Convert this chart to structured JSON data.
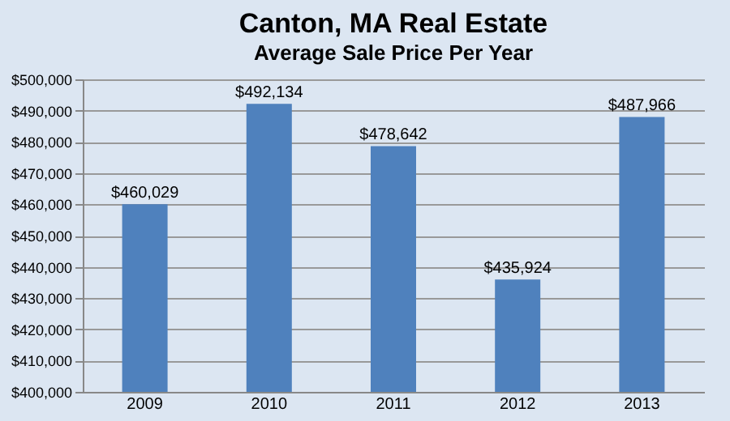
{
  "chart_data": {
    "type": "bar",
    "title": "Canton, MA Real Estate",
    "subtitle": "Average Sale Price Per Year",
    "categories": [
      "2009",
      "2010",
      "2011",
      "2012",
      "2013"
    ],
    "values": [
      460029,
      492134,
      478642,
      435924,
      487966
    ],
    "color": "#4f81bd",
    "ylim": [
      400000,
      500000
    ],
    "yticks": [
      {
        "value": 400000,
        "label": "$400,000"
      },
      {
        "value": 410000,
        "label": "$410,000"
      },
      {
        "value": 420000,
        "label": "$420,000"
      },
      {
        "value": 430000,
        "label": "$430,000"
      },
      {
        "value": 440000,
        "label": "$440,000"
      },
      {
        "value": 450000,
        "label": "$450,000"
      },
      {
        "value": 460000,
        "label": "$460,000"
      },
      {
        "value": 470000,
        "label": "$470,000"
      },
      {
        "value": 480000,
        "label": "$480,000"
      },
      {
        "value": 490000,
        "label": "$490,000"
      },
      {
        "value": 500000,
        "label": "$500,000"
      }
    ],
    "value_labels": [
      "$460,029",
      "$492,134",
      "$478,642",
      "$435,924",
      "$487,966"
    ],
    "grid": "y"
  }
}
